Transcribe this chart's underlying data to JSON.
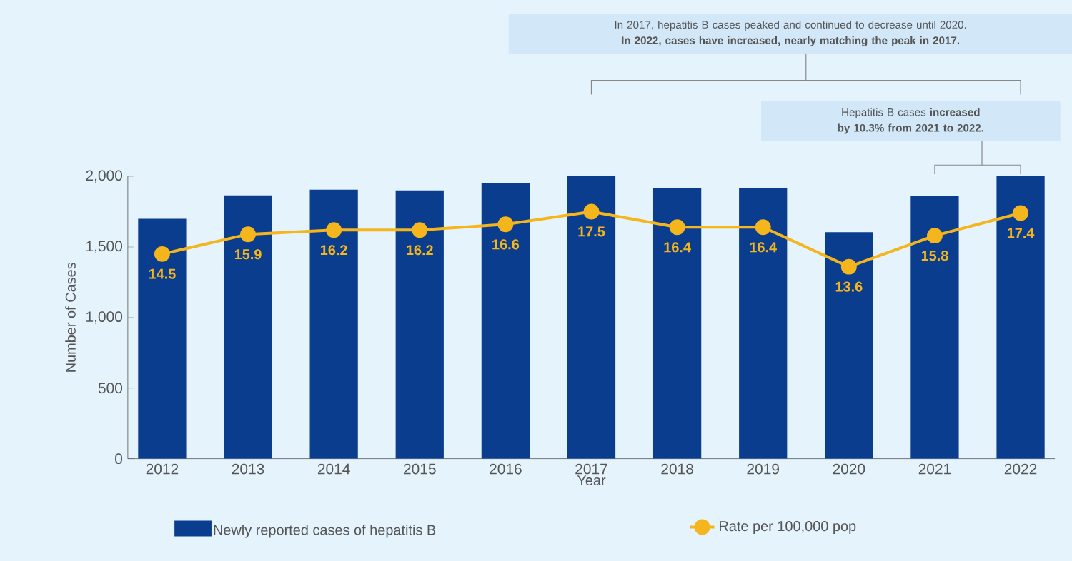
{
  "chart_data": {
    "type": "bar",
    "categories": [
      "2012",
      "2013",
      "2014",
      "2015",
      "2016",
      "2017",
      "2018",
      "2019",
      "2020",
      "2021",
      "2022"
    ],
    "xlabel": "Year",
    "ylabel": "Number of Cases",
    "ylim": [
      0,
      2000
    ],
    "yticks": [
      0,
      500,
      {
        "value": 1000,
        "label": "1,000"
      },
      {
        "value": 1500,
        "label": "1,500"
      },
      {
        "value": 2000,
        "label": "2,000"
      }
    ],
    "y2lim": [
      0,
      20
    ],
    "legend": "bottom",
    "annotations": [
      "In 2017, hepatitis B cases peaked and continued to decrease until 2020. **In 2022, cases have increased, nearly matching the peak in 2017.**",
      "Hepatitis B cases **increased by 10.3% from 2021 to 2022.**"
    ],
    "series": [
      {
        "name": "Newly reported cases of hepatitis B",
        "color": "#0b3d8f",
        "values": [
          1700,
          1865,
          1905,
          1900,
          1950,
          2000,
          1920,
          1920,
          1605,
          1860,
          2000
        ]
      },
      {
        "name": "Rate per 100,000 pop",
        "type": "line",
        "axis": "y2",
        "color": "#f5b51c",
        "marker": "circle",
        "values": [
          14.5,
          15.9,
          16.2,
          16.2,
          16.6,
          17.5,
          16.4,
          16.4,
          13.6,
          15.8,
          17.4
        ],
        "value_labels": [
          "14.5",
          "15.9",
          "16.2",
          "16.2",
          "16.6",
          "17.5",
          "16.4",
          "16.4",
          "13.6",
          "15.8",
          "17.4"
        ]
      }
    ]
  }
}
